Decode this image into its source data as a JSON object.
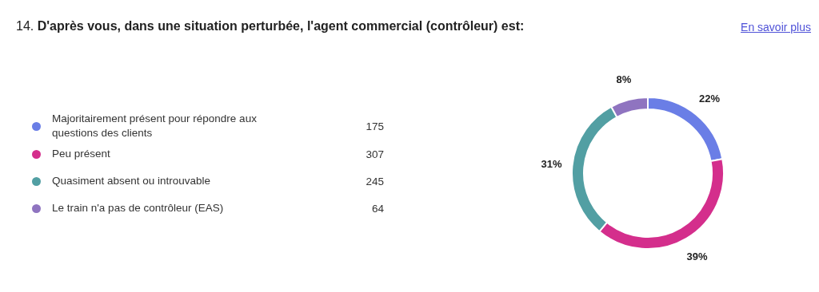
{
  "chart_data": {
    "type": "donut",
    "title": "14. D'après vous, dans une situation perturbée, l'agent commercial (contrôleur) est:",
    "categories": [
      "Majoritairement présent pour répondre aux questions des clients",
      "Peu présent",
      "Quasiment absent ou introuvable",
      "Le train n'a pas de contrôleur (EAS)"
    ],
    "values": [
      22,
      39,
      31,
      8
    ],
    "colors": [
      "#6a7ee6",
      "#d42e8c",
      "#529fa3",
      "#8f74c0"
    ],
    "value_labels": [
      "22%",
      "39%",
      "31%",
      "8%"
    ],
    "legend": "left",
    "annotations": [
      "En savoir plus",
      {
        "text": "175",
        "x": "Majoritairement présent pour répondre aux questions des clients"
      },
      {
        "text": "307",
        "x": "Peu présent"
      },
      {
        "text": "245",
        "x": "Quasiment absent ou introuvable"
      },
      {
        "text": "64",
        "x": "Le train n'a pas de contrôleur (EAS)"
      }
    ]
  }
}
